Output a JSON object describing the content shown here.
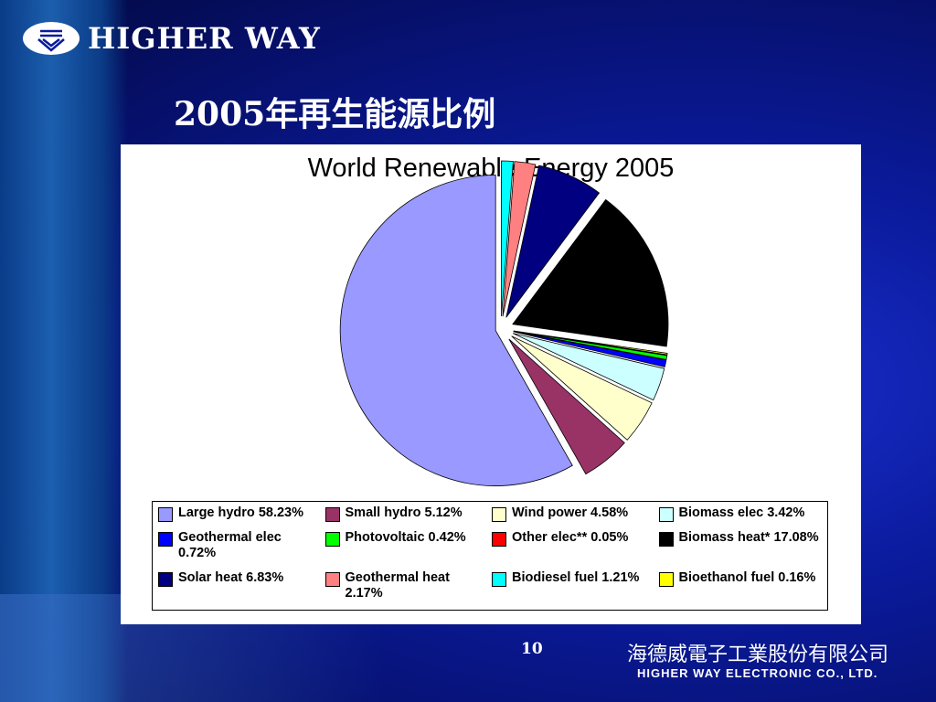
{
  "header": {
    "logo_text": "HIGHER WAY"
  },
  "slide": {
    "title": "2005年再生能源比例",
    "page_number": "10"
  },
  "footer": {
    "company_zh": "海德威電子工業股份有限公司",
    "company_en": "HIGHER WAY ELECTRONIC CO., LTD."
  },
  "chart_data": {
    "type": "pie",
    "title": "World Renewable Energy 2005",
    "legend_position": "bottom",
    "series": [
      {
        "name": "Large hydro",
        "label": "Large hydro 58.23%",
        "value": 58.23,
        "color": "#9999ff"
      },
      {
        "name": "Small hydro",
        "label": "Small hydro 5.12%",
        "value": 5.12,
        "color": "#993366"
      },
      {
        "name": "Wind power",
        "label": "Wind power 4.58%",
        "value": 4.58,
        "color": "#ffffcc"
      },
      {
        "name": "Biomass elec",
        "label": "Biomass elec 3.42%",
        "value": 3.42,
        "color": "#ccffff"
      },
      {
        "name": "Geothermal elec",
        "label": "Geothermal elec 0.72%",
        "value": 0.72,
        "color": "#0000ff"
      },
      {
        "name": "Photovoltaic",
        "label": "Photovoltaic 0.42%",
        "value": 0.42,
        "color": "#00ff00"
      },
      {
        "name": "Other elec**",
        "label": "Other elec** 0.05%",
        "value": 0.05,
        "color": "#ff0000"
      },
      {
        "name": "Biomass heat*",
        "label": "Biomass heat* 17.08%",
        "value": 17.08,
        "color": "#000000"
      },
      {
        "name": "Solar heat",
        "label": "Solar heat 6.83%",
        "value": 6.83,
        "color": "#000080"
      },
      {
        "name": "Geothermal heat",
        "label": "Geothermal heat 2.17%",
        "value": 2.17,
        "color": "#ff8080"
      },
      {
        "name": "Biodiesel fuel",
        "label": "Biodiesel fuel 1.21%",
        "value": 1.21,
        "color": "#00ffff"
      },
      {
        "name": "Bioethanol fuel",
        "label": "Bioethanol fuel 0.16%",
        "value": 0.16,
        "color": "#ffff00"
      }
    ]
  }
}
